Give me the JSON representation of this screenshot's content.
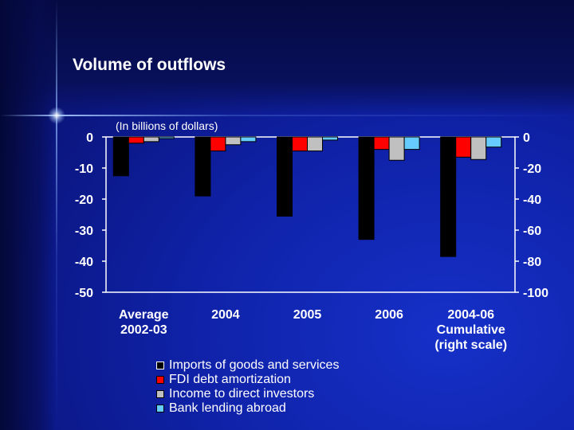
{
  "slide": {
    "title": "Volume of outflows"
  },
  "chart_data": {
    "type": "bar",
    "subtitle": "(In billions of dollars)",
    "categories": [
      [
        "Average",
        "2002-03"
      ],
      [
        "2004"
      ],
      [
        "2005"
      ],
      [
        "2006"
      ],
      [
        "2004-06",
        "Cumulative",
        "(right scale)"
      ]
    ],
    "axis_assignment": [
      "left",
      "left",
      "left",
      "left",
      "right"
    ],
    "series": [
      {
        "name": "Imports of goods and services",
        "color": "#000000",
        "values": [
          -12.5,
          -19,
          -25.5,
          -33,
          -77
        ]
      },
      {
        "name": "FDI debt amortization",
        "color": "#ff0000",
        "values": [
          -2,
          -4.5,
          -4.5,
          -4,
          -13
        ]
      },
      {
        "name": "Income to direct investors",
        "color": "#c0c0c0",
        "values": [
          -1.5,
          -2.5,
          -4.5,
          -7.5,
          -14.5
        ]
      },
      {
        "name": "Bank lending abroad",
        "color": "#66ccff",
        "values": [
          -0.5,
          -1.5,
          -1,
          -4,
          -6.5
        ]
      }
    ],
    "y_left": {
      "ylim": [
        -50,
        0
      ],
      "ticks": [
        0,
        -10,
        -20,
        -30,
        -40,
        -50
      ]
    },
    "y_right": {
      "ylim": [
        -100,
        0
      ],
      "ticks": [
        0,
        -20,
        -40,
        -60,
        -80,
        -100
      ]
    },
    "grid": false,
    "legend_position": "bottom"
  }
}
